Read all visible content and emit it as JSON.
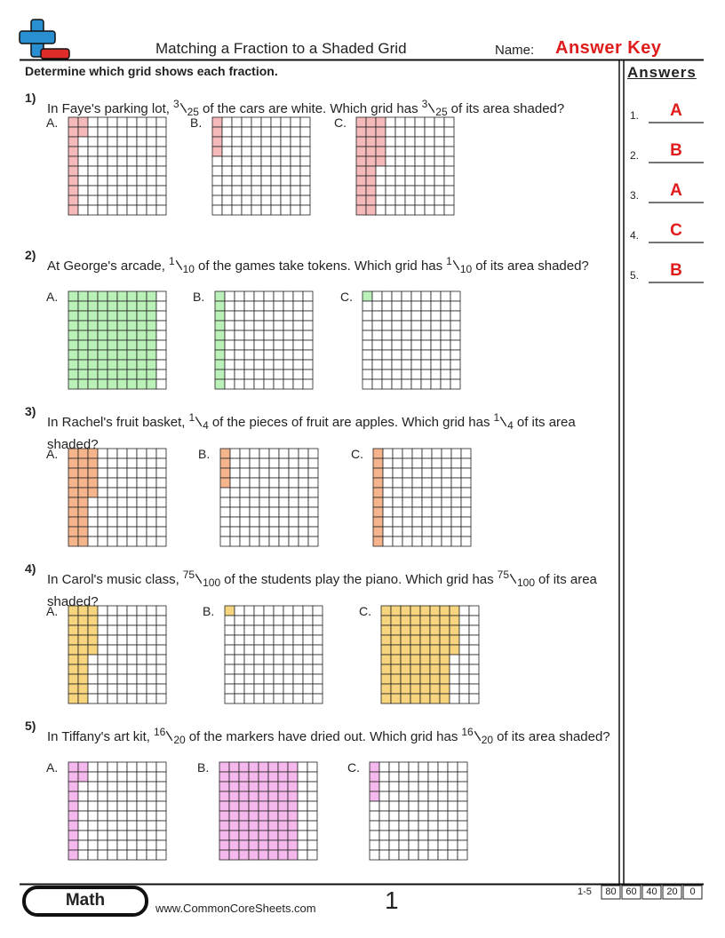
{
  "header": {
    "title": "Matching a Fraction to a Shaded Grid",
    "name_label": "Name:",
    "answer_key": "Answer Key"
  },
  "instruction": "Determine which grid shows each fraction.",
  "option_labels": [
    "A.",
    "B.",
    "C."
  ],
  "questions": [
    {
      "number": "1)",
      "before": "In Faye's parking lot,",
      "numerator": 3,
      "denominator": 25,
      "middle": "of the cars are white. Which grid has",
      "after": "of its area shaded?"
    },
    {
      "number": "2)",
      "before": "At George's arcade,",
      "numerator": 1,
      "denominator": 10,
      "middle": "of the games take tokens. Which grid has",
      "after": "of its area shaded?"
    },
    {
      "number": "3)",
      "before": "In Rachel's fruit basket,",
      "numerator": 1,
      "denominator": 4,
      "middle": "of the pieces of fruit are apples. Which grid has",
      "after": "of its area shaded?"
    },
    {
      "number": "4)",
      "before": "In Carol's music class,",
      "numerator": 75,
      "denominator": 100,
      "middle": "of the students play the piano. Which grid has",
      "after": "of its area shaded?"
    },
    {
      "number": "5)",
      "before": "In Tiffany's art kit,",
      "numerator": 16,
      "denominator": 20,
      "middle": "of the markers have dried out. Which grid has",
      "after": "of its area shaded?"
    }
  ],
  "answers": {
    "heading": "Answers",
    "items": [
      {
        "number": "1.",
        "answer": "A"
      },
      {
        "number": "2.",
        "answer": "B"
      },
      {
        "number": "3.",
        "answer": "A"
      },
      {
        "number": "4.",
        "answer": "C"
      },
      {
        "number": "5.",
        "answer": "B"
      }
    ]
  },
  "footer": {
    "subject": "Math",
    "url": "www.CommonCoreSheets.com",
    "page": 1,
    "score": {
      "range": "1-5",
      "values": [
        80,
        60,
        40,
        20,
        0
      ]
    }
  }
}
